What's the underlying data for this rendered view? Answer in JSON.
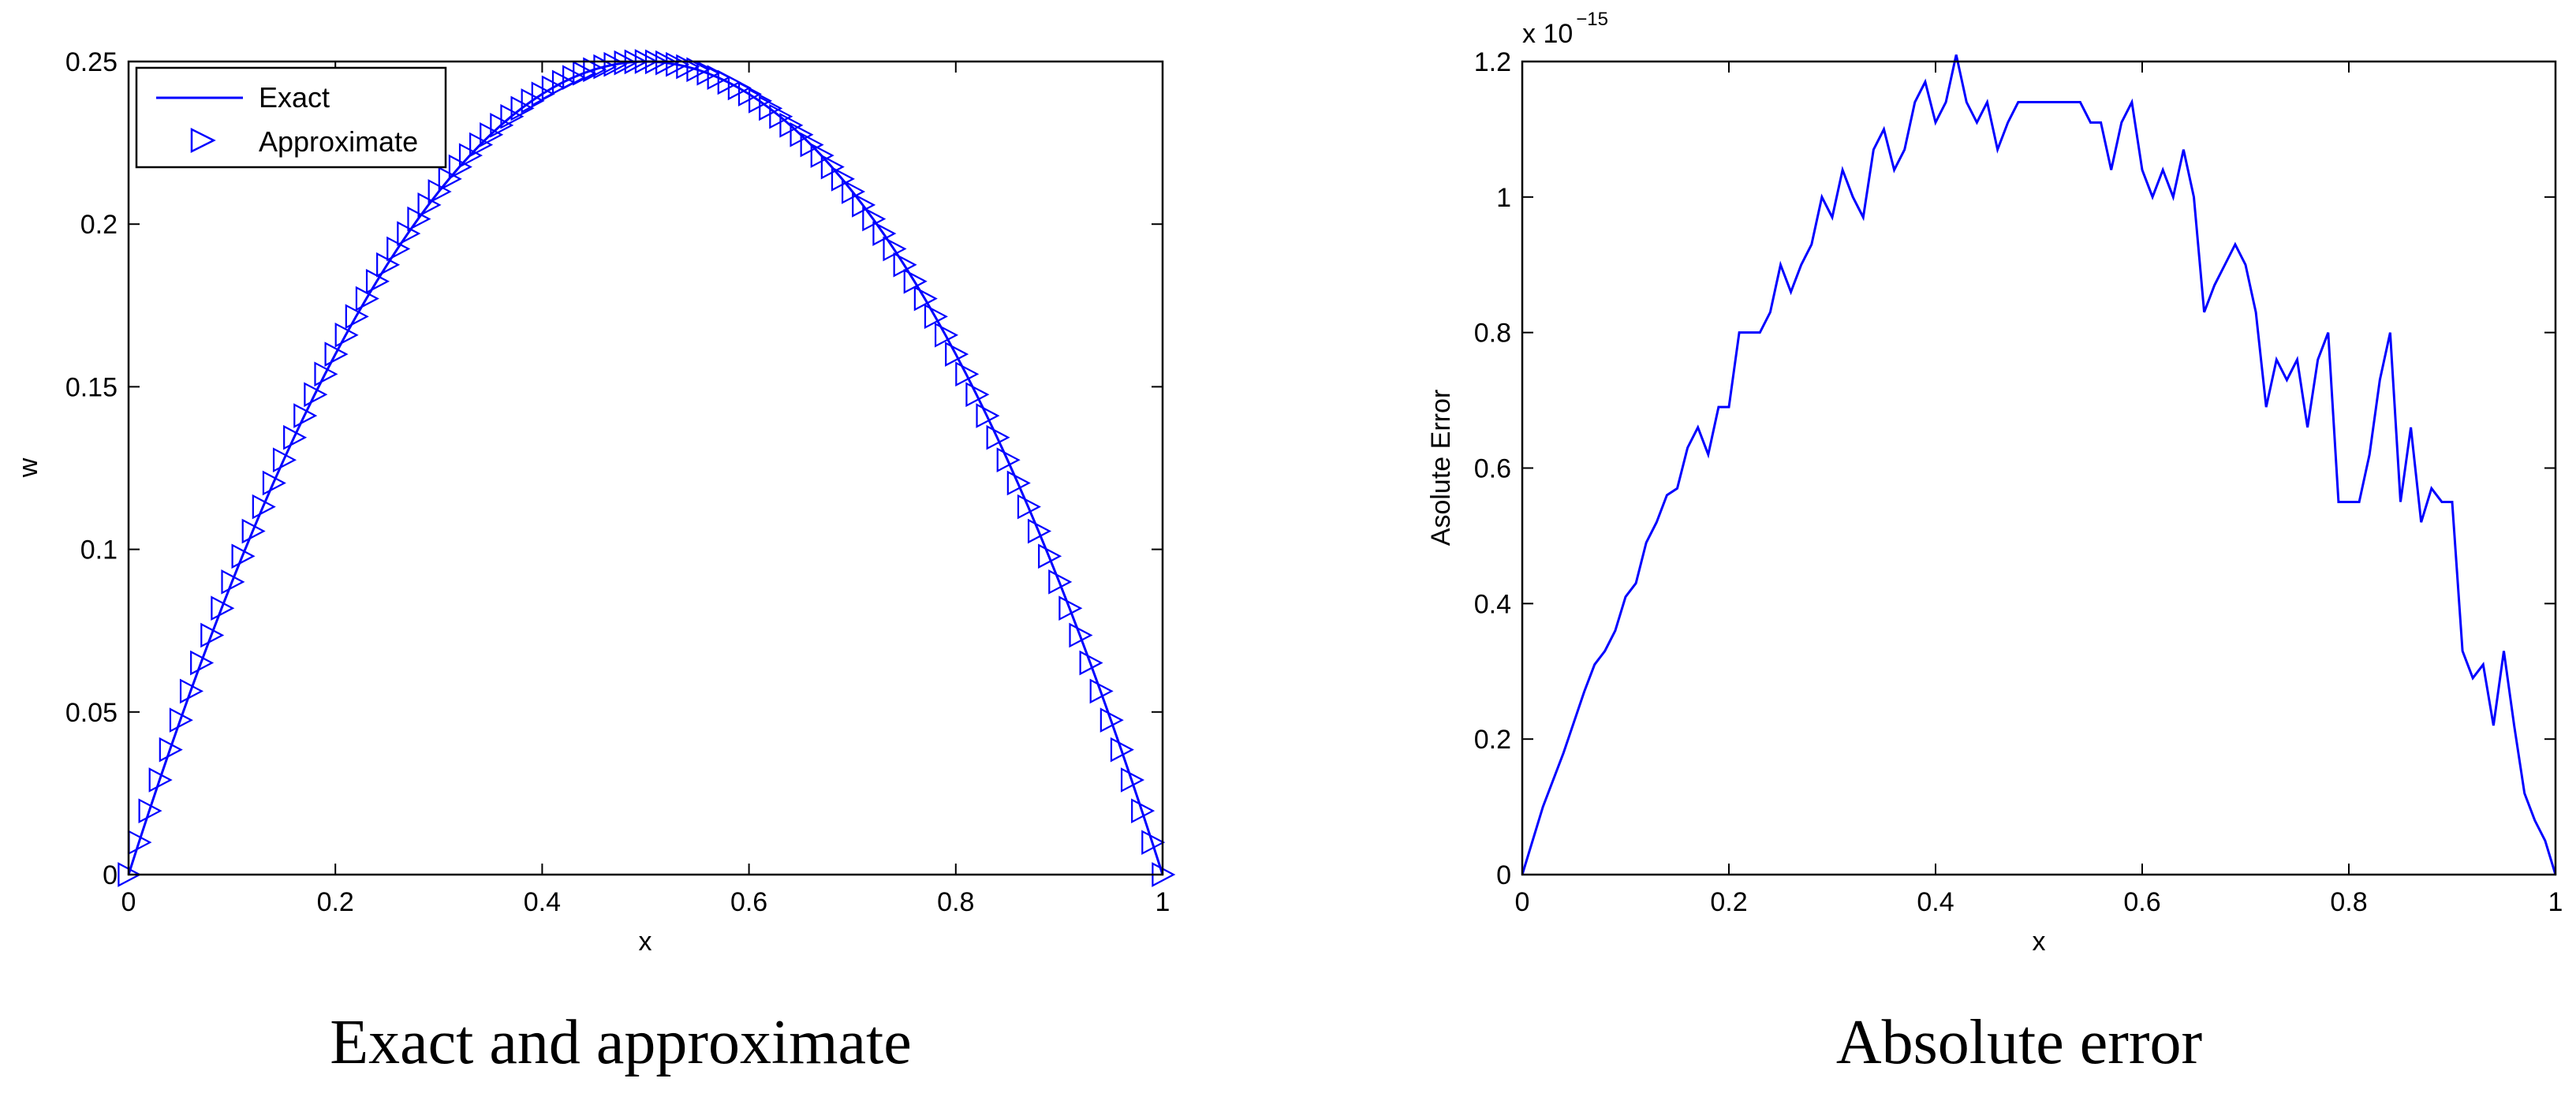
{
  "colors": {
    "series": "#0000ff",
    "axes": "#000000",
    "background": "#ffffff"
  },
  "chart_data": [
    {
      "type": "line",
      "title": "Exact and approximate",
      "xlabel": "x",
      "ylabel": "w",
      "xlim": [
        0,
        1
      ],
      "ylim": [
        0,
        0.25
      ],
      "xticks": [
        0,
        0.2,
        0.4,
        0.6,
        0.8,
        1
      ],
      "xtick_labels": [
        "0",
        "0.2",
        "0.4",
        "0.6",
        "0.8",
        "1"
      ],
      "yticks": [
        0,
        0.05,
        0.1,
        0.15,
        0.2,
        0.25
      ],
      "ytick_labels": [
        "0",
        "0.05",
        "0.1",
        "0.15",
        "0.2",
        "0.25"
      ],
      "legend_position": "top-left",
      "series": [
        {
          "name": "Exact",
          "style": "line",
          "function": "x*(1-x)",
          "x_start": 0,
          "x_end": 1,
          "n_points": 101
        },
        {
          "name": "Approximate",
          "style": "markers",
          "marker": "triangle-right",
          "function": "x*(1-x)",
          "x_start": 0,
          "x_end": 1,
          "n_points": 101
        }
      ]
    },
    {
      "type": "line",
      "title": "Absolute error",
      "xlabel": "x",
      "ylabel": "Asolute Error",
      "y_exponent_label": "x 10",
      "y_exponent_power": "−15",
      "xlim": [
        0,
        1
      ],
      "ylim": [
        0,
        1.2
      ],
      "xticks": [
        0,
        0.2,
        0.4,
        0.6,
        0.8,
        1
      ],
      "xtick_labels": [
        "0",
        "0.2",
        "0.4",
        "0.6",
        "0.8",
        "1"
      ],
      "yticks": [
        0,
        0.2,
        0.4,
        0.6,
        0.8,
        1,
        1.2
      ],
      "ytick_labels": [
        "0",
        "0.2",
        "0.4",
        "0.6",
        "0.8",
        "1",
        "1.2"
      ],
      "series": [
        {
          "name": "Absolute error",
          "x": [
            0,
            0.02,
            0.04,
            0.06,
            0.07,
            0.08,
            0.09,
            0.1,
            0.11,
            0.12,
            0.13,
            0.14,
            0.15,
            0.16,
            0.17,
            0.18,
            0.19,
            0.2,
            0.21,
            0.22,
            0.23,
            0.24,
            0.25,
            0.26,
            0.27,
            0.28,
            0.29,
            0.3,
            0.31,
            0.32,
            0.33,
            0.34,
            0.35,
            0.36,
            0.37,
            0.38,
            0.39,
            0.4,
            0.41,
            0.42,
            0.43,
            0.44,
            0.45,
            0.46,
            0.47,
            0.48,
            0.5,
            0.52,
            0.54,
            0.55,
            0.56,
            0.57,
            0.58,
            0.59,
            0.6,
            0.61,
            0.62,
            0.63,
            0.64,
            0.65,
            0.66,
            0.67,
            0.68,
            0.69,
            0.7,
            0.71,
            0.72,
            0.73,
            0.74,
            0.75,
            0.76,
            0.77,
            0.78,
            0.79,
            0.8,
            0.81,
            0.82,
            0.83,
            0.84,
            0.85,
            0.86,
            0.87,
            0.88,
            0.89,
            0.9,
            0.91,
            0.92,
            0.93,
            0.94,
            0.95,
            0.96,
            0.97,
            0.98,
            0.99,
            1
          ],
          "y": [
            0,
            0.1,
            0.18,
            0.27,
            0.31,
            0.33,
            0.36,
            0.41,
            0.43,
            0.49,
            0.52,
            0.56,
            0.57,
            0.63,
            0.66,
            0.62,
            0.69,
            0.69,
            0.8,
            0.8,
            0.8,
            0.83,
            0.9,
            0.86,
            0.9,
            0.93,
            1.0,
            0.97,
            1.04,
            1.0,
            0.97,
            1.07,
            1.1,
            1.04,
            1.07,
            1.14,
            1.17,
            1.11,
            1.14,
            1.21,
            1.14,
            1.11,
            1.14,
            1.07,
            1.11,
            1.14,
            1.14,
            1.14,
            1.14,
            1.11,
            1.11,
            1.04,
            1.11,
            1.14,
            1.04,
            1.0,
            1.04,
            1.0,
            1.07,
            1.0,
            0.83,
            0.87,
            0.9,
            0.93,
            0.9,
            0.83,
            0.69,
            0.76,
            0.73,
            0.76,
            0.66,
            0.76,
            0.8,
            0.55,
            0.55,
            0.55,
            0.62,
            0.73,
            0.8,
            0.55,
            0.66,
            0.52,
            0.57,
            0.55,
            0.55,
            0.33,
            0.29,
            0.31,
            0.22,
            0.33,
            0.22,
            0.12,
            0.08,
            0.05,
            0.0
          ]
        }
      ]
    }
  ]
}
